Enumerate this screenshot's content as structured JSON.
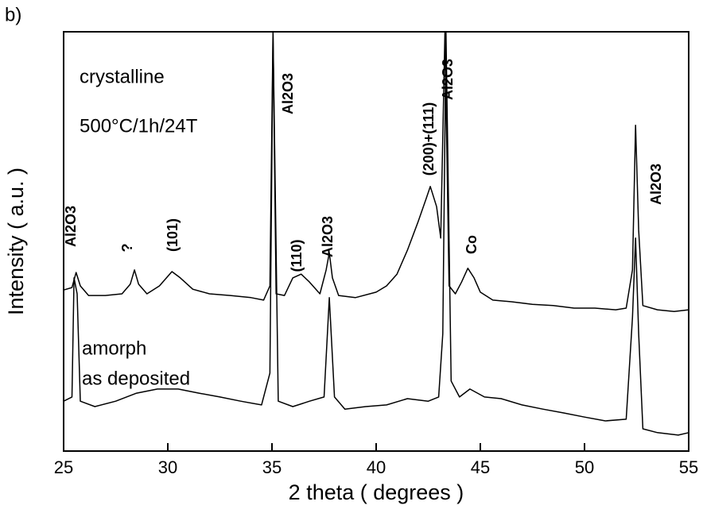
{
  "chart_data": {
    "type": "line",
    "panel_label": "b)",
    "xlabel": "2 theta ( degrees )",
    "ylabel": "Intensity ( a.u. )",
    "xlim": [
      25,
      55
    ],
    "xticks": [
      25,
      30,
      35,
      40,
      45,
      50,
      55
    ],
    "ylim": [
      0,
      100
    ],
    "series": [
      {
        "name": "crystalline",
        "color": "#000000",
        "x": [
          25,
          25.4,
          25.6,
          25.8,
          26.2,
          27,
          27.8,
          28.2,
          28.4,
          28.6,
          29,
          29.6,
          30.2,
          30.6,
          31.2,
          32,
          33,
          34,
          34.6,
          34.9,
          35.05,
          35.2,
          35.6,
          36,
          36.4,
          36.8,
          37.3,
          37.6,
          37.75,
          37.9,
          38.2,
          39,
          40,
          40.5,
          41,
          41.5,
          42,
          42.4,
          42.6,
          42.9,
          43.1,
          43.3,
          43.5,
          43.8,
          44.1,
          44.4,
          44.7,
          45,
          45.6,
          46.5,
          47.5,
          48.5,
          49.5,
          50.5,
          51.5,
          52,
          52.3,
          52.45,
          52.6,
          52.8,
          53.5,
          54.3,
          55
        ],
        "values": [
          38.4,
          39.0,
          42.6,
          39.4,
          37.1,
          37.1,
          37.5,
          39.8,
          43.2,
          39.8,
          37.5,
          39.4,
          42.8,
          41.3,
          38.6,
          37.5,
          37.1,
          36.6,
          36.0,
          39.4,
          100,
          37.5,
          37.1,
          41.3,
          42.2,
          40.3,
          37.5,
          43.2,
          47.3,
          41.3,
          37.1,
          36.6,
          37.9,
          39.4,
          42.2,
          47.9,
          54.5,
          60.2,
          63.1,
          58.3,
          50.8,
          100,
          39.4,
          37.5,
          40.3,
          43.6,
          41.3,
          37.9,
          36.0,
          35.6,
          35.0,
          34.7,
          34.1,
          34.1,
          33.7,
          34.1,
          43.2,
          77.7,
          52.7,
          34.7,
          33.7,
          33.3,
          33.7
        ]
      },
      {
        "name": "amorph",
        "color": "#000000",
        "x": [
          25,
          25.4,
          25.5,
          25.65,
          25.8,
          26.5,
          27.5,
          28.5,
          29.5,
          30.5,
          31.5,
          32.5,
          33.5,
          34.5,
          34.9,
          35.05,
          35.3,
          36,
          36.8,
          37.5,
          37.75,
          38,
          38.5,
          39.5,
          40.5,
          41.5,
          42.5,
          43,
          43.2,
          43.35,
          43.6,
          44,
          44.5,
          45.2,
          46,
          47,
          48,
          49,
          50,
          51,
          52,
          52.3,
          52.45,
          52.6,
          52.8,
          53.5,
          54.5,
          55
        ],
        "values": [
          11.9,
          12.9,
          41.3,
          37.5,
          11.9,
          10.6,
          11.9,
          13.8,
          14.8,
          14.8,
          13.8,
          12.9,
          11.9,
          11.0,
          18.6,
          100,
          11.9,
          10.6,
          11.9,
          12.9,
          36.6,
          12.9,
          10.0,
          10.6,
          11.0,
          12.5,
          11.9,
          12.9,
          28.0,
          100,
          16.7,
          12.9,
          14.8,
          12.9,
          12.5,
          11.0,
          10.0,
          9.1,
          8.1,
          7.2,
          7.6,
          31.8,
          50.8,
          28.0,
          5.3,
          4.4,
          3.8,
          4.4
        ]
      }
    ],
    "annotations": [
      "crystalline",
      "500°C/1h/24T",
      "amorph",
      "as deposited",
      "Al2O3",
      "?",
      "(101)",
      "(110)",
      "Al2O3",
      "Al2O3",
      "(200)+(111)",
      "Al2O3",
      "Co",
      "Al2O3"
    ]
  }
}
